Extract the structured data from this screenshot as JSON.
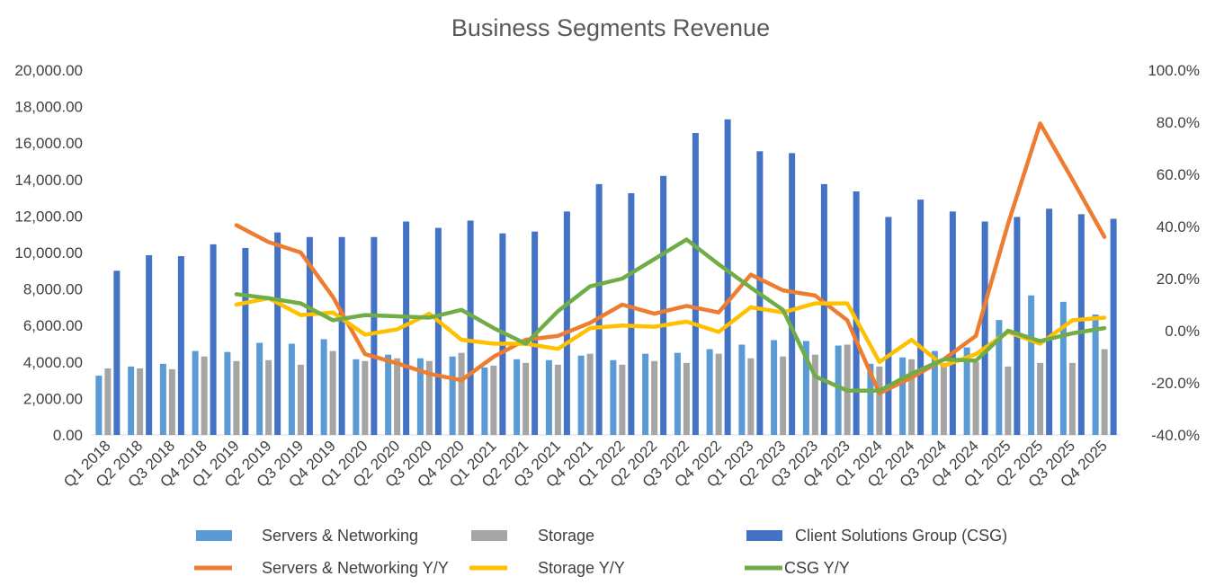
{
  "chart_data": {
    "type": "bar+line",
    "title": "Business Segments Revenue",
    "categories": [
      "Q1 2018",
      "Q2 2018",
      "Q3 2018",
      "Q4 2018",
      "Q1 2019",
      "Q2 2019",
      "Q3 2019",
      "Q4 2019",
      "Q1 2020",
      "Q2 2020",
      "Q3 2020",
      "Q4 2020",
      "Q1 2021",
      "Q2 2021",
      "Q3 2021",
      "Q4 2021",
      "Q1 2022",
      "Q2 2022",
      "Q3 2022",
      "Q4 2022",
      "Q1 2023",
      "Q2 2023",
      "Q3 2023",
      "Q4 2023",
      "Q1 2024",
      "Q2 2024",
      "Q3 2024",
      "Q4 2024",
      "Q1 2025",
      "Q2 2025",
      "Q3 2025",
      "Q4 2025"
    ],
    "y_left": {
      "min": 0,
      "max": 20000,
      "step": 2000,
      "tick_labels": [
        "0.00",
        "2,000.00",
        "4,000.00",
        "6,000.00",
        "8,000.00",
        "10,000.00",
        "12,000.00",
        "14,000.00",
        "16,000.00",
        "18,000.00",
        "20,000.00"
      ]
    },
    "y_right": {
      "min": -40,
      "max": 100,
      "step": 20,
      "tick_labels": [
        "-40.0%",
        "-20.0%",
        "0.0%",
        "20.0%",
        "40.0%",
        "60.0%",
        "80.0%",
        "100.0%"
      ]
    },
    "bar_series": [
      {
        "name": "Servers & Networking",
        "color": "#5B9BD5",
        "axis": "left",
        "values": [
          3250,
          3750,
          3900,
          4600,
          4550,
          5050,
          5000,
          5250,
          4150,
          4400,
          4200,
          4300,
          3700,
          4150,
          4100,
          4350,
          4100,
          4450,
          4500,
          4700,
          4950,
          5200,
          5150,
          4900,
          3900,
          4250,
          4600,
          4800,
          6300,
          7650,
          7300,
          6600
        ]
      },
      {
        "name": "Storage",
        "color": "#A5A5A5",
        "axis": "left",
        "values": [
          3650,
          3650,
          3600,
          4300,
          4050,
          4100,
          3850,
          4600,
          4050,
          4200,
          4050,
          4500,
          3800,
          3950,
          3850,
          4450,
          3850,
          4050,
          3950,
          4450,
          4200,
          4300,
          4400,
          4950,
          3750,
          4150,
          3950,
          4000,
          3750,
          3950,
          3950,
          4700
        ]
      },
      {
        "name": "Client Solutions Group (CSG)",
        "color": "#4472C4",
        "axis": "left",
        "values": [
          9000,
          9850,
          9800,
          10450,
          10250,
          11100,
          10850,
          10850,
          10850,
          11700,
          11350,
          11750,
          11050,
          11150,
          12250,
          13750,
          13250,
          14200,
          16550,
          17300,
          15550,
          15450,
          13750,
          13350,
          11950,
          12900,
          12250,
          11700,
          11950,
          12400,
          12100,
          11850
        ]
      }
    ],
    "line_series": [
      {
        "name": "Servers & Networking Y/Y",
        "color": "#ED7D31",
        "axis": "right",
        "start_index": 4,
        "values": [
          40.5,
          34,
          30,
          13,
          -9,
          -12.5,
          -16.5,
          -19,
          -10,
          -3.5,
          -2,
          3,
          10,
          6.5,
          9.5,
          7,
          21.5,
          15.5,
          13.5,
          4,
          -24,
          -18,
          -11,
          -2,
          41,
          79.5,
          58,
          36
        ]
      },
      {
        "name": "Storage Y/Y",
        "color": "#FFC000",
        "axis": "right",
        "start_index": 4,
        "values": [
          10,
          12.5,
          6,
          7,
          -1.5,
          0.5,
          6.5,
          -3.5,
          -5,
          -5,
          -7,
          1,
          2,
          1.5,
          3.5,
          -0.5,
          9,
          7,
          10.5,
          10.5,
          -12,
          -3.5,
          -13.5,
          -9,
          -0.5,
          -5,
          4,
          5
        ]
      },
      {
        "name": "CSG Y/Y",
        "color": "#70AD47",
        "axis": "right",
        "start_index": 4,
        "values": [
          14,
          12.5,
          10.5,
          4,
          6,
          5.5,
          5,
          8,
          1,
          -5,
          7.5,
          17,
          20,
          27.5,
          35,
          25.5,
          16.5,
          8,
          -17.5,
          -23,
          -23,
          -16.5,
          -11,
          -11.5,
          0,
          -4,
          -1,
          1
        ]
      }
    ],
    "legend": {
      "position": "bottom",
      "entries": [
        "Servers & Networking",
        "Storage",
        "Client Solutions Group (CSG)",
        "Servers & Networking Y/Y",
        "Storage Y/Y",
        "CSG Y/Y"
      ]
    }
  }
}
